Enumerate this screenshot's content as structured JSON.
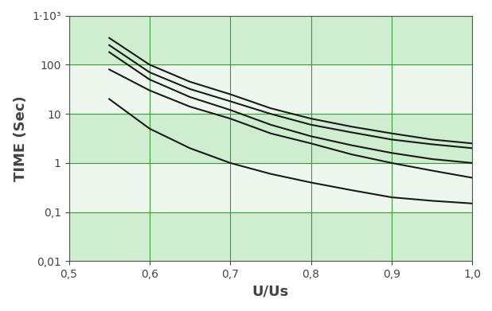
{
  "chart_data": {
    "type": "line",
    "x_label": "U/Us",
    "y_label": "TIME (Sec)",
    "x": [
      0.55,
      0.6,
      0.65,
      0.7,
      0.75,
      0.8,
      0.85,
      0.9,
      0.95,
      1.0
    ],
    "series": [
      {
        "color": "#1a1a1a",
        "values": [
          350,
          100,
          45,
          25,
          13,
          8,
          5.5,
          4,
          3,
          2.5
        ]
      },
      {
        "color": "#1a1a1a",
        "values": [
          250,
          70,
          32,
          18,
          10,
          6,
          4.2,
          3,
          2.4,
          2
        ]
      },
      {
        "color": "#1a1a1a",
        "values": [
          180,
          50,
          22,
          12,
          6,
          3.5,
          2.3,
          1.6,
          1.2,
          1
        ]
      },
      {
        "color": "#1a1a1a",
        "values": [
          80,
          30,
          14,
          8,
          4,
          2.5,
          1.5,
          1,
          0.7,
          0.5
        ]
      },
      {
        "color": "#1a1a1a",
        "values": [
          20,
          5,
          2,
          1,
          0.6,
          0.4,
          0.28,
          0.2,
          0.17,
          0.15
        ]
      }
    ],
    "xlim": [
      0.5,
      1.0
    ],
    "xticks": [
      {
        "value": 0.5,
        "label": "0,5"
      },
      {
        "value": 0.6,
        "label": "0,6"
      },
      {
        "value": 0.7,
        "label": "0,7"
      },
      {
        "value": 0.8,
        "label": "0,8"
      },
      {
        "value": 0.9,
        "label": "0,9"
      },
      {
        "value": 1.0,
        "label": "1,0"
      }
    ],
    "ylim": [
      0.01,
      1000
    ],
    "yticks": [
      {
        "value": 0.01,
        "label": "0,01"
      },
      {
        "value": 0.1,
        "label": "0,1"
      },
      1,
      10,
      100,
      {
        "value": 1000,
        "label": "1·10³"
      }
    ],
    "log": "y",
    "grid": true,
    "color": "#1a1a1a"
  }
}
